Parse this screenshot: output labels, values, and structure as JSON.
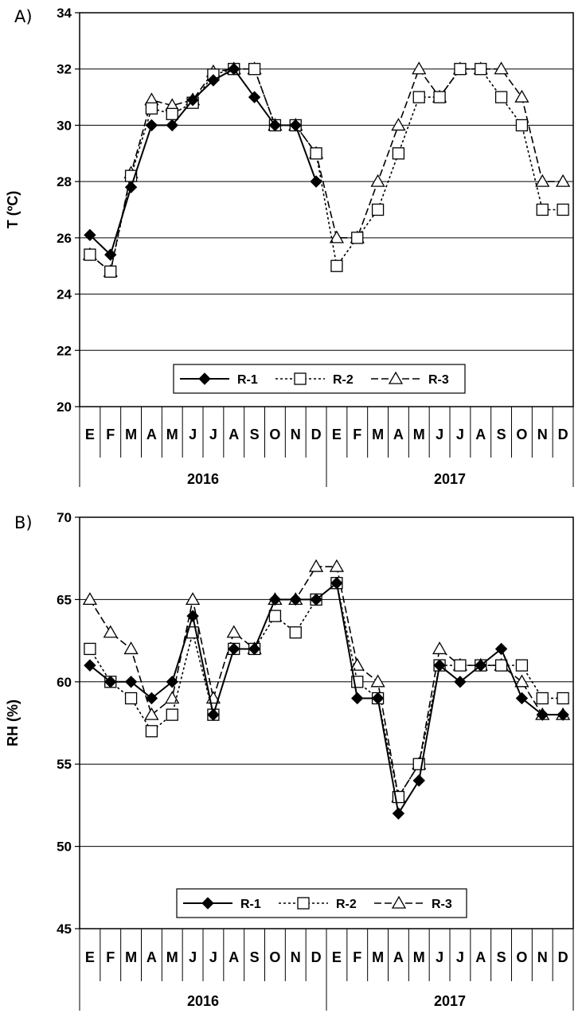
{
  "chart_data": [
    {
      "panel_label": "A)",
      "type": "line",
      "ylabel": "T (ºC)",
      "ylim": [
        20,
        34
      ],
      "yticks": [
        "20",
        "22",
        "24",
        "26",
        "28",
        "30",
        "32",
        "34"
      ],
      "grid": "horizontal",
      "categories": [
        "E",
        "F",
        "M",
        "A",
        "M",
        "J",
        "J",
        "A",
        "S",
        "O",
        "N",
        "D",
        "E",
        "F",
        "M",
        "A",
        "M",
        "J",
        "J",
        "A",
        "S",
        "O",
        "N",
        "D"
      ],
      "years": [
        "2016",
        "2017"
      ],
      "legend_position": "bottom-center",
      "series": [
        {
          "name": "R-1",
          "marker": "diamond",
          "line": "solid",
          "values": [
            26.1,
            25.4,
            27.8,
            30,
            30,
            30.9,
            31.6,
            32,
            31,
            30,
            30,
            28,
            null,
            null,
            null,
            null,
            null,
            null,
            null,
            null,
            null,
            null,
            null,
            null
          ]
        },
        {
          "name": "R-2",
          "marker": "square",
          "line": "dotted",
          "values": [
            25.4,
            24.8,
            28.2,
            30.6,
            30.4,
            30.8,
            31.8,
            32,
            32,
            30,
            30,
            29,
            25,
            26,
            27,
            29,
            31,
            31,
            32,
            32,
            31,
            30,
            27,
            27
          ]
        },
        {
          "name": "R-3",
          "marker": "triangle",
          "line": "dashed",
          "values": [
            25.4,
            24.8,
            28.3,
            30.9,
            30.7,
            30.9,
            31.9,
            32,
            32,
            30,
            30,
            29,
            26,
            26,
            28,
            30,
            32,
            31,
            32,
            32,
            32,
            31,
            28,
            28
          ]
        }
      ]
    },
    {
      "panel_label": "B)",
      "type": "line",
      "ylabel": "RH (%)",
      "ylim": [
        45,
        70
      ],
      "yticks": [
        "45",
        "50",
        "55",
        "60",
        "65",
        "70"
      ],
      "grid": "horizontal",
      "categories": [
        "E",
        "F",
        "M",
        "A",
        "M",
        "J",
        "J",
        "A",
        "S",
        "O",
        "N",
        "D",
        "E",
        "F",
        "M",
        "A",
        "M",
        "J",
        "J",
        "A",
        "S",
        "O",
        "N",
        "D"
      ],
      "years": [
        "2016",
        "2017"
      ],
      "legend_position": "bottom-center",
      "series": [
        {
          "name": "R-1",
          "marker": "diamond",
          "line": "solid",
          "values": [
            61,
            60,
            60,
            59,
            60,
            64,
            58,
            62,
            62,
            65,
            65,
            65,
            66,
            59,
            59,
            52,
            54,
            61,
            60,
            61,
            62,
            59,
            58,
            58
          ]
        },
        {
          "name": "R-2",
          "marker": "square",
          "line": "dotted",
          "values": [
            62,
            60,
            59,
            57,
            58,
            63,
            58,
            62,
            62,
            64,
            63,
            65,
            66,
            60,
            59,
            53,
            55,
            61,
            61,
            61,
            61,
            61,
            59,
            59
          ]
        },
        {
          "name": "R-3",
          "marker": "triangle",
          "line": "dashed",
          "values": [
            65,
            63,
            62,
            58,
            59,
            65,
            59,
            63,
            62,
            65,
            65,
            67,
            67,
            61,
            60,
            53,
            55,
            62,
            61,
            61,
            61,
            60,
            58,
            58
          ]
        }
      ]
    }
  ]
}
